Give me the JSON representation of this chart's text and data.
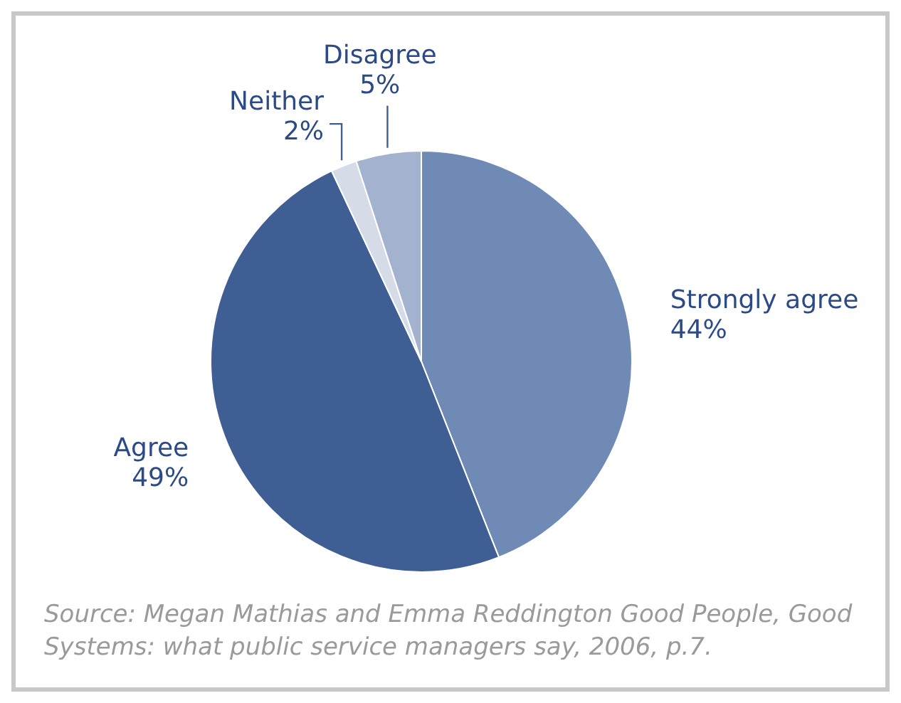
{
  "chart_data": {
    "type": "pie",
    "categories": [
      "Strongly agree",
      "Agree",
      "Neither",
      "Disagree"
    ],
    "values": [
      44,
      49,
      2,
      5
    ],
    "colors": [
      "#6f8ab5",
      "#3f5f94",
      "#d5dce8",
      "#a3b3cf"
    ],
    "value_labels": [
      "44%",
      "49%",
      "2%",
      "5%"
    ],
    "annotations": [
      "Source: Megan Mathias and Emma Reddington Good People, Good Systems: what public service managers say, 2006, p.7."
    ]
  }
}
